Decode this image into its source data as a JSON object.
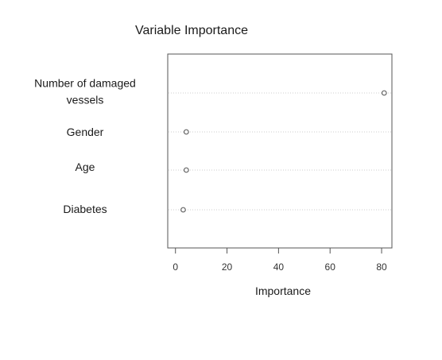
{
  "chart_data": {
    "type": "scatter",
    "title": "Variable Importance",
    "xlabel": "Importance",
    "ylabel": "",
    "xlim": [
      -3,
      84
    ],
    "xticks": [
      0,
      20,
      40,
      60,
      80
    ],
    "grid": "horizontal dotted guides",
    "categories": [
      [
        "Number of damaged",
        "vessels"
      ],
      [
        "Gender"
      ],
      [
        "Age"
      ],
      [
        "Diabetes"
      ]
    ],
    "values": [
      81,
      4.2,
      4.2,
      3.0
    ],
    "colors": {
      "point": "#666666",
      "frame": "#555555",
      "guide": "#cccccc"
    }
  }
}
